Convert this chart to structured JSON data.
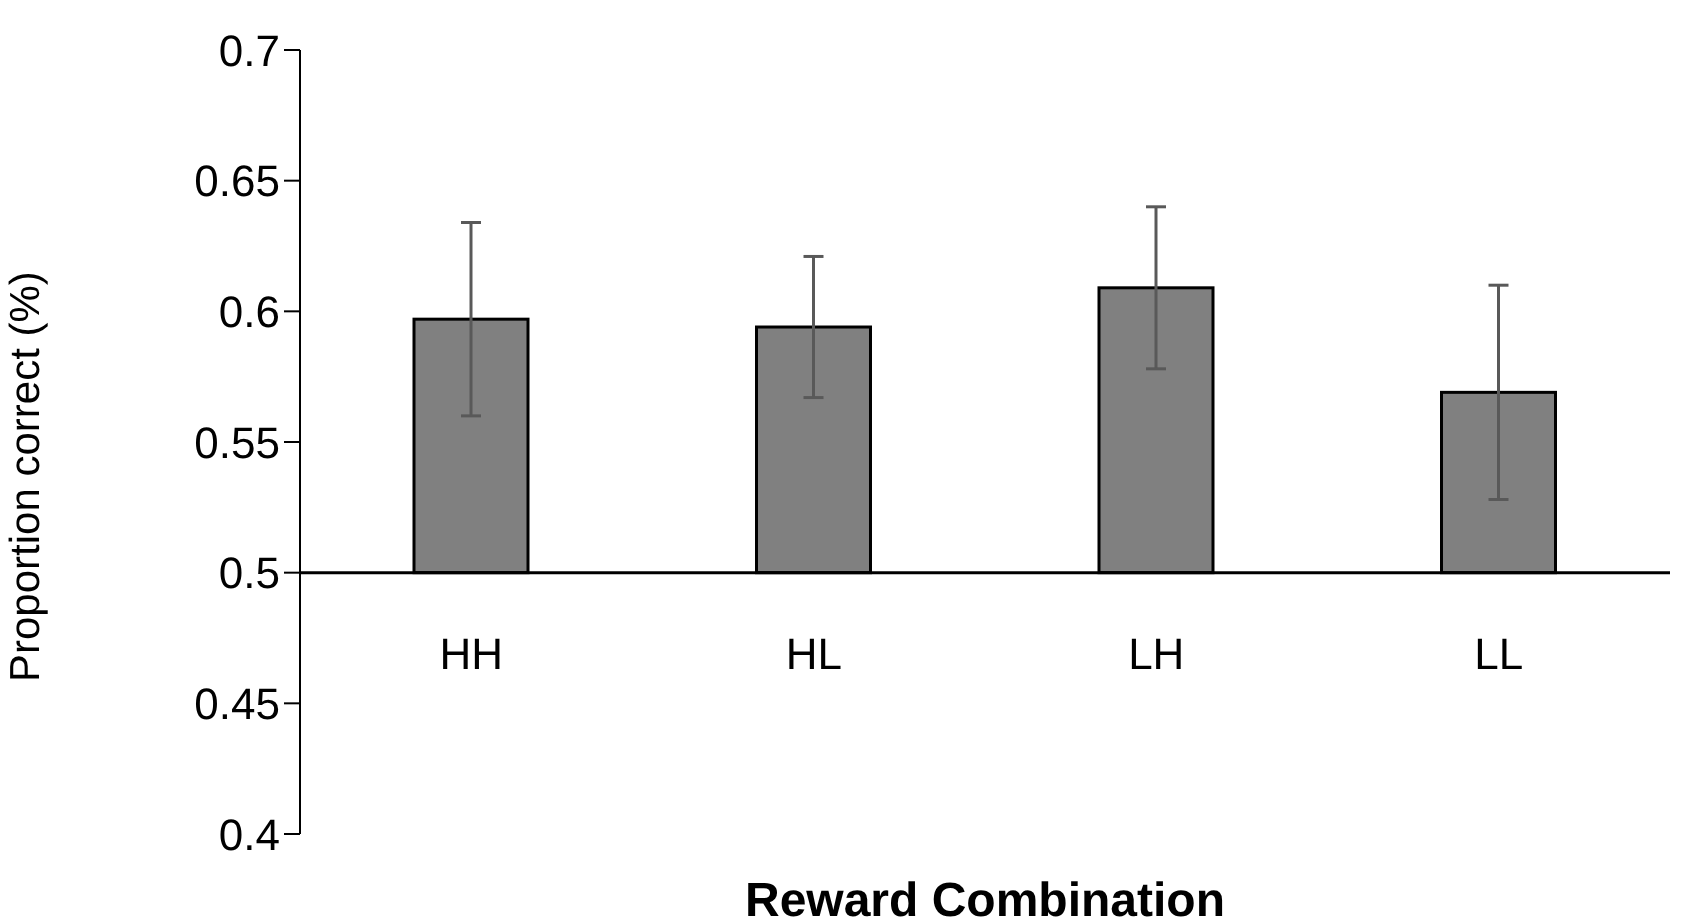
{
  "chart_data": {
    "type": "bar",
    "xlabel": "Reward Combination",
    "ylabel": "Proportion correct (%)",
    "categories": [
      "HH",
      "HL",
      "LH",
      "LL"
    ],
    "base": [
      0.5,
      0.5,
      0.5,
      0.5
    ],
    "values": [
      0.097,
      0.094,
      0.109,
      0.069
    ],
    "errors": [
      0.037,
      0.027,
      0.031,
      0.041
    ],
    "color": "#808080",
    "ylim": [
      0.4,
      0.7
    ],
    "yticks": [
      0.4,
      0.45,
      0.5,
      0.55,
      0.6,
      0.65,
      0.7
    ],
    "legend": false
  }
}
